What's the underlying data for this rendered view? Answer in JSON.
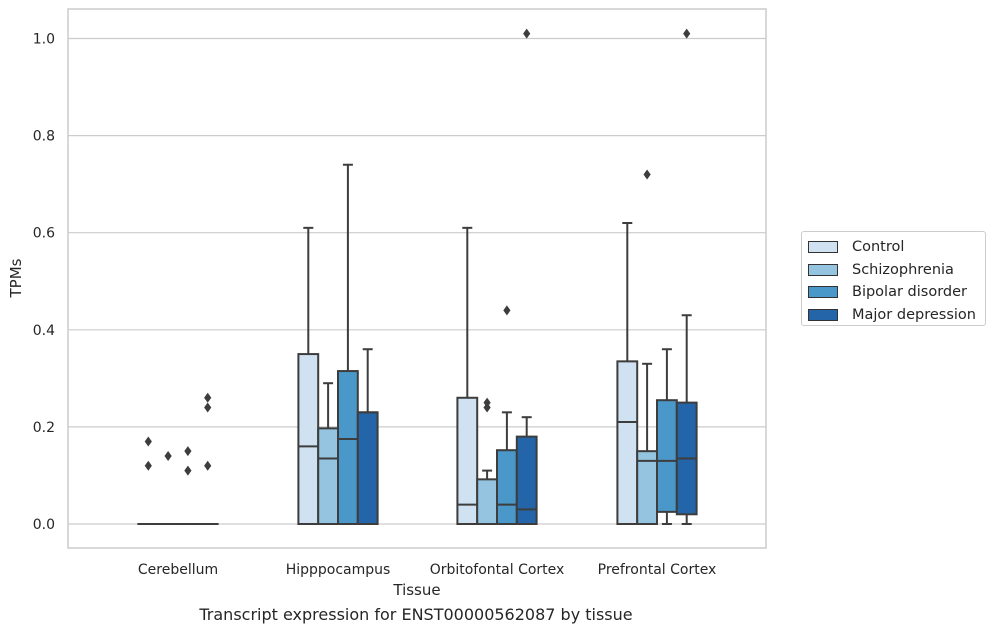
{
  "chart_data": {
    "type": "box",
    "caption": "Transcript expression for ENST00000562087 by tissue",
    "xlabel": "Tissue",
    "ylabel": "TPMs",
    "ylim": [
      -0.05,
      1.06
    ],
    "yticks": [
      "0.0",
      "0.2",
      "0.4",
      "0.6",
      "0.8",
      "1.0"
    ],
    "ytick_values": [
      0.0,
      0.2,
      0.4,
      0.6,
      0.8,
      1.0
    ],
    "grid": true,
    "legend_position": "right",
    "categories": [
      "Cerebellum",
      "Hipppocampus",
      "Orbitofontal Cortex",
      "Prefrontal Cortex"
    ],
    "series": [
      {
        "name": "Control",
        "color": "#d0e1f2",
        "boxes": [
          {
            "min": 0,
            "q1": 0,
            "median": 0,
            "q3": 0,
            "max": 0,
            "outliers": [
              0.17,
              0.12
            ]
          },
          {
            "min": 0,
            "q1": 0,
            "median": 0.16,
            "q3": 0.35,
            "max": 0.61,
            "outliers": []
          },
          {
            "min": 0,
            "q1": 0,
            "median": 0.04,
            "q3": 0.26,
            "max": 0.61,
            "outliers": []
          },
          {
            "min": 0,
            "q1": 0,
            "median": 0.21,
            "q3": 0.335,
            "max": 0.62,
            "outliers": []
          }
        ]
      },
      {
        "name": "Schizophrenia",
        "color": "#94c4df",
        "boxes": [
          {
            "min": 0,
            "q1": 0,
            "median": 0,
            "q3": 0,
            "max": 0,
            "outliers": [
              0.14
            ]
          },
          {
            "min": 0,
            "q1": 0,
            "median": 0.135,
            "q3": 0.197,
            "max": 0.29,
            "outliers": []
          },
          {
            "min": 0,
            "q1": 0,
            "median": 0,
            "q3": 0.092,
            "max": 0.11,
            "outliers": [
              0.25,
              0.24
            ]
          },
          {
            "min": 0,
            "q1": 0,
            "median": 0.13,
            "q3": 0.15,
            "max": 0.33,
            "outliers": [
              0.72
            ]
          }
        ]
      },
      {
        "name": "Bipolar disorder",
        "color": "#4a98c9",
        "boxes": [
          {
            "min": 0,
            "q1": 0,
            "median": 0,
            "q3": 0,
            "max": 0,
            "outliers": [
              0.15,
              0.11
            ]
          },
          {
            "min": 0,
            "q1": 0,
            "median": 0.175,
            "q3": 0.315,
            "max": 0.74,
            "outliers": []
          },
          {
            "min": 0,
            "q1": 0,
            "median": 0.04,
            "q3": 0.152,
            "max": 0.23,
            "outliers": [
              0.44
            ]
          },
          {
            "min": 0,
            "q1": 0.025,
            "median": 0.13,
            "q3": 0.255,
            "max": 0.36,
            "outliers": []
          }
        ]
      },
      {
        "name": "Major depression",
        "color": "#2464a8",
        "boxes": [
          {
            "min": 0,
            "q1": 0,
            "median": 0,
            "q3": 0,
            "max": 0,
            "outliers": [
              0.26,
              0.24,
              0.12
            ]
          },
          {
            "min": 0,
            "q1": 0,
            "median": 0.23,
            "q3": 0.23,
            "max": 0.36,
            "outliers": []
          },
          {
            "min": 0,
            "q1": 0,
            "median": 0.03,
            "q3": 0.18,
            "max": 0.22,
            "outliers": [
              1.01
            ]
          },
          {
            "min": 0,
            "q1": 0.02,
            "median": 0.135,
            "q3": 0.25,
            "max": 0.43,
            "outliers": [
              1.01
            ]
          }
        ]
      }
    ]
  }
}
